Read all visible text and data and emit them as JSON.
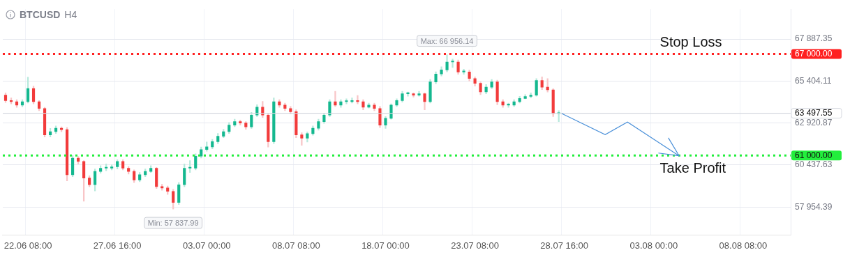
{
  "chart_data": {
    "type": "candlestick",
    "title": "BTCUSD",
    "subtitle": "H4",
    "categories": [
      null,
      null,
      null,
      null,
      "22.06 08:00",
      null,
      null,
      null,
      null,
      null,
      null,
      null,
      null,
      null,
      null,
      null,
      null,
      null,
      null,
      null,
      "27.06 16:00",
      null,
      null,
      null,
      null,
      null,
      null,
      null,
      null,
      null,
      null,
      null,
      null,
      null,
      null,
      null,
      "03.07 00:00",
      null,
      null,
      null,
      null,
      null,
      null,
      null,
      null,
      null,
      null,
      null,
      null,
      null,
      null,
      null,
      "08.07 08:00",
      null,
      null,
      null,
      null,
      null,
      null,
      null,
      null,
      null,
      null,
      null,
      null,
      null,
      null,
      null,
      "18.07 00:00",
      null,
      null,
      null,
      null,
      null,
      null,
      null,
      null,
      null,
      null,
      null,
      null,
      null,
      null,
      null,
      "23.07 08:00",
      null,
      null,
      null,
      null,
      null,
      null,
      null,
      null,
      null,
      null,
      null,
      null,
      null,
      null,
      null,
      "28.07 16:00",
      null,
      null,
      null,
      null,
      null,
      null,
      null,
      null,
      null,
      null,
      null,
      null,
      null,
      null,
      null,
      "03.08 00:00",
      null,
      null,
      null,
      null,
      null,
      null,
      null,
      null,
      null,
      null,
      null,
      null,
      null,
      null,
      null,
      "08.08 08:00",
      null,
      null,
      null,
      null,
      null,
      null,
      null,
      null
    ],
    "ohlc": [
      [
        64570,
        64700,
        64130,
        64250
      ],
      [
        64250,
        64400,
        64050,
        64180
      ],
      [
        64180,
        64300,
        63850,
        63980
      ],
      [
        63980,
        64300,
        63880,
        64180
      ],
      [
        64180,
        65630,
        64100,
        64960
      ],
      [
        64960,
        65100,
        64050,
        64180
      ],
      [
        64180,
        64250,
        63650,
        63780
      ],
      [
        63780,
        63850,
        62100,
        62220
      ],
      [
        62220,
        62600,
        62100,
        62410
      ],
      [
        62410,
        62750,
        62300,
        62610
      ],
      [
        62610,
        62700,
        62400,
        62530
      ],
      [
        62530,
        62650,
        59500,
        59860
      ],
      [
        59860,
        61000,
        59750,
        60840
      ],
      [
        60840,
        60950,
        60500,
        60650
      ],
      [
        60650,
        60700,
        58300,
        59670
      ],
      [
        59670,
        59800,
        59150,
        59270
      ],
      [
        59270,
        60200,
        58900,
        60060
      ],
      [
        60060,
        60400,
        59950,
        60250
      ],
      [
        60250,
        60500,
        60100,
        60300
      ],
      [
        60250,
        60450,
        60150,
        60330
      ],
      [
        60330,
        60750,
        60200,
        60650
      ],
      [
        60650,
        60750,
        60150,
        60250
      ],
      [
        60250,
        60350,
        59900,
        60060
      ],
      [
        60060,
        60150,
        59400,
        59550
      ],
      [
        59550,
        60000,
        59450,
        59860
      ],
      [
        59860,
        60200,
        59750,
        60060
      ],
      [
        60060,
        60400,
        60000,
        60250
      ],
      [
        60250,
        60300,
        59050,
        59160
      ],
      [
        59160,
        59300,
        58950,
        59080
      ],
      [
        59080,
        59200,
        58700,
        58880
      ],
      [
        58880,
        59000,
        57837.99,
        58220
      ],
      [
        58220,
        59400,
        58100,
        59270
      ],
      [
        59270,
        60500,
        59150,
        60250
      ],
      [
        60250,
        60700,
        60000,
        60300
      ],
      [
        60250,
        61100,
        60150,
        60960
      ],
      [
        60960,
        61500,
        60850,
        61350
      ],
      [
        61350,
        61800,
        61250,
        61510
      ],
      [
        61510,
        61950,
        61400,
        61820
      ],
      [
        61820,
        62300,
        61700,
        62140
      ],
      [
        62140,
        62550,
        62050,
        62410
      ],
      [
        62410,
        62950,
        62300,
        62800
      ],
      [
        62800,
        63150,
        62700,
        63000
      ],
      [
        63000,
        63100,
        62800,
        62920
      ],
      [
        62920,
        63000,
        62550,
        62690
      ],
      [
        62690,
        63550,
        62600,
        63390
      ],
      [
        63390,
        64000,
        63300,
        63860
      ],
      [
        63860,
        64200,
        63250,
        63390
      ],
      [
        63390,
        63500,
        61500,
        61820
      ],
      [
        61820,
        64400,
        61700,
        64180
      ],
      [
        64180,
        64300,
        63850,
        63980
      ],
      [
        63980,
        64100,
        63650,
        63780
      ],
      [
        63780,
        63900,
        63450,
        63590
      ],
      [
        63590,
        63700,
        62050,
        62220
      ],
      [
        62220,
        62350,
        61600,
        62020
      ],
      [
        62020,
        62400,
        61800,
        62290
      ],
      [
        62290,
        62750,
        62200,
        62610
      ],
      [
        62610,
        63150,
        62500,
        63000
      ],
      [
        63000,
        63500,
        62900,
        63390
      ],
      [
        63390,
        64300,
        63300,
        64180
      ],
      [
        64180,
        64800,
        63900,
        63980
      ],
      [
        63980,
        64300,
        63850,
        64180
      ],
      [
        64180,
        64350,
        64050,
        64230
      ],
      [
        64180,
        64400,
        64100,
        64250
      ],
      [
        64250,
        64550,
        64050,
        64180
      ],
      [
        64180,
        64300,
        63700,
        63860
      ],
      [
        63860,
        64100,
        63800,
        63980
      ],
      [
        63980,
        64100,
        63650,
        63780
      ],
      [
        63780,
        63900,
        62650,
        62800
      ],
      [
        62800,
        63300,
        62600,
        63200
      ],
      [
        63200,
        64050,
        63150,
        63980
      ],
      [
        63980,
        64350,
        63900,
        64250
      ],
      [
        64250,
        64800,
        64150,
        64650
      ],
      [
        64650,
        64750,
        64500,
        64700
      ],
      [
        64650,
        64700,
        64450,
        64570
      ],
      [
        64570,
        64800,
        64500,
        64650
      ],
      [
        64650,
        64700,
        63700,
        64180
      ],
      [
        64180,
        65500,
        64100,
        65350
      ],
      [
        65350,
        65950,
        65250,
        65820
      ],
      [
        65820,
        66250,
        65700,
        66060
      ],
      [
        66060,
        66956.14,
        65950,
        66530
      ],
      [
        66530,
        66700,
        66200,
        66560
      ],
      [
        66530,
        66650,
        65800,
        65940
      ],
      [
        65940,
        66100,
        65800,
        65980
      ],
      [
        65940,
        66050,
        65400,
        65550
      ],
      [
        65550,
        65650,
        65100,
        65270
      ],
      [
        65270,
        65350,
        64600,
        64760
      ],
      [
        64760,
        65200,
        64650,
        65040
      ],
      [
        65040,
        65500,
        64950,
        65350
      ],
      [
        65350,
        65450,
        64000,
        64180
      ],
      [
        64180,
        64300,
        63850,
        63980
      ],
      [
        63980,
        64100,
        63850,
        64020
      ],
      [
        63980,
        64300,
        63900,
        64180
      ],
      [
        64180,
        64500,
        64100,
        64370
      ],
      [
        64370,
        64600,
        64350,
        64490
      ],
      [
        64490,
        64700,
        64400,
        64570
      ],
      [
        64570,
        65550,
        64500,
        65430
      ],
      [
        65430,
        65650,
        64900,
        65040
      ],
      [
        65040,
        65550,
        64750,
        64880
      ],
      [
        64880,
        64950,
        63300,
        63470
      ],
      [
        63470,
        63650,
        63000,
        63497.55
      ],
      null,
      null,
      null,
      null,
      null,
      null,
      null,
      null,
      null,
      null,
      null,
      null,
      null,
      null,
      null,
      null,
      null,
      null,
      null,
      null,
      null,
      null,
      null,
      null,
      null,
      null,
      null,
      null,
      null,
      null,
      null,
      null,
      null,
      null,
      null,
      null,
      null,
      null,
      null,
      null,
      null
    ],
    "ylim": [
      56300,
      69650
    ],
    "yticks": [
      {
        "value": 57954.39,
        "label": "57 954.39"
      },
      {
        "value": 60437.63,
        "label": "60 437.63"
      },
      {
        "value": 61000,
        "label": "61 000.00"
      },
      {
        "value": 62920.87,
        "label": "62 920.87"
      },
      {
        "value": 63497.55,
        "label": "63 497.55"
      },
      {
        "value": 65404.11,
        "label": "65 404.11"
      },
      {
        "value": 67000,
        "label": "67 000.00"
      },
      {
        "value": 67887.35,
        "label": "67 887.35"
      }
    ],
    "ref_lines": [
      {
        "axis": "y",
        "value": 67000,
        "label": "Stop Loss",
        "color": "#ff2020",
        "line_style": "dotted"
      },
      {
        "axis": "y",
        "value": 61000,
        "label": "Take Profit",
        "color": "#22ee3c",
        "line_style": "dotted"
      },
      {
        "axis": "y",
        "value": 63497.55,
        "color": "#d4d7de",
        "line_style": "solid"
      }
    ],
    "annotations": [
      {
        "text": "Max: 66 956.14",
        "y": 66956.14
      },
      {
        "text": "Min: 57 837.99",
        "y": 57837.99
      }
    ],
    "grid": true,
    "legend": false
  }
}
